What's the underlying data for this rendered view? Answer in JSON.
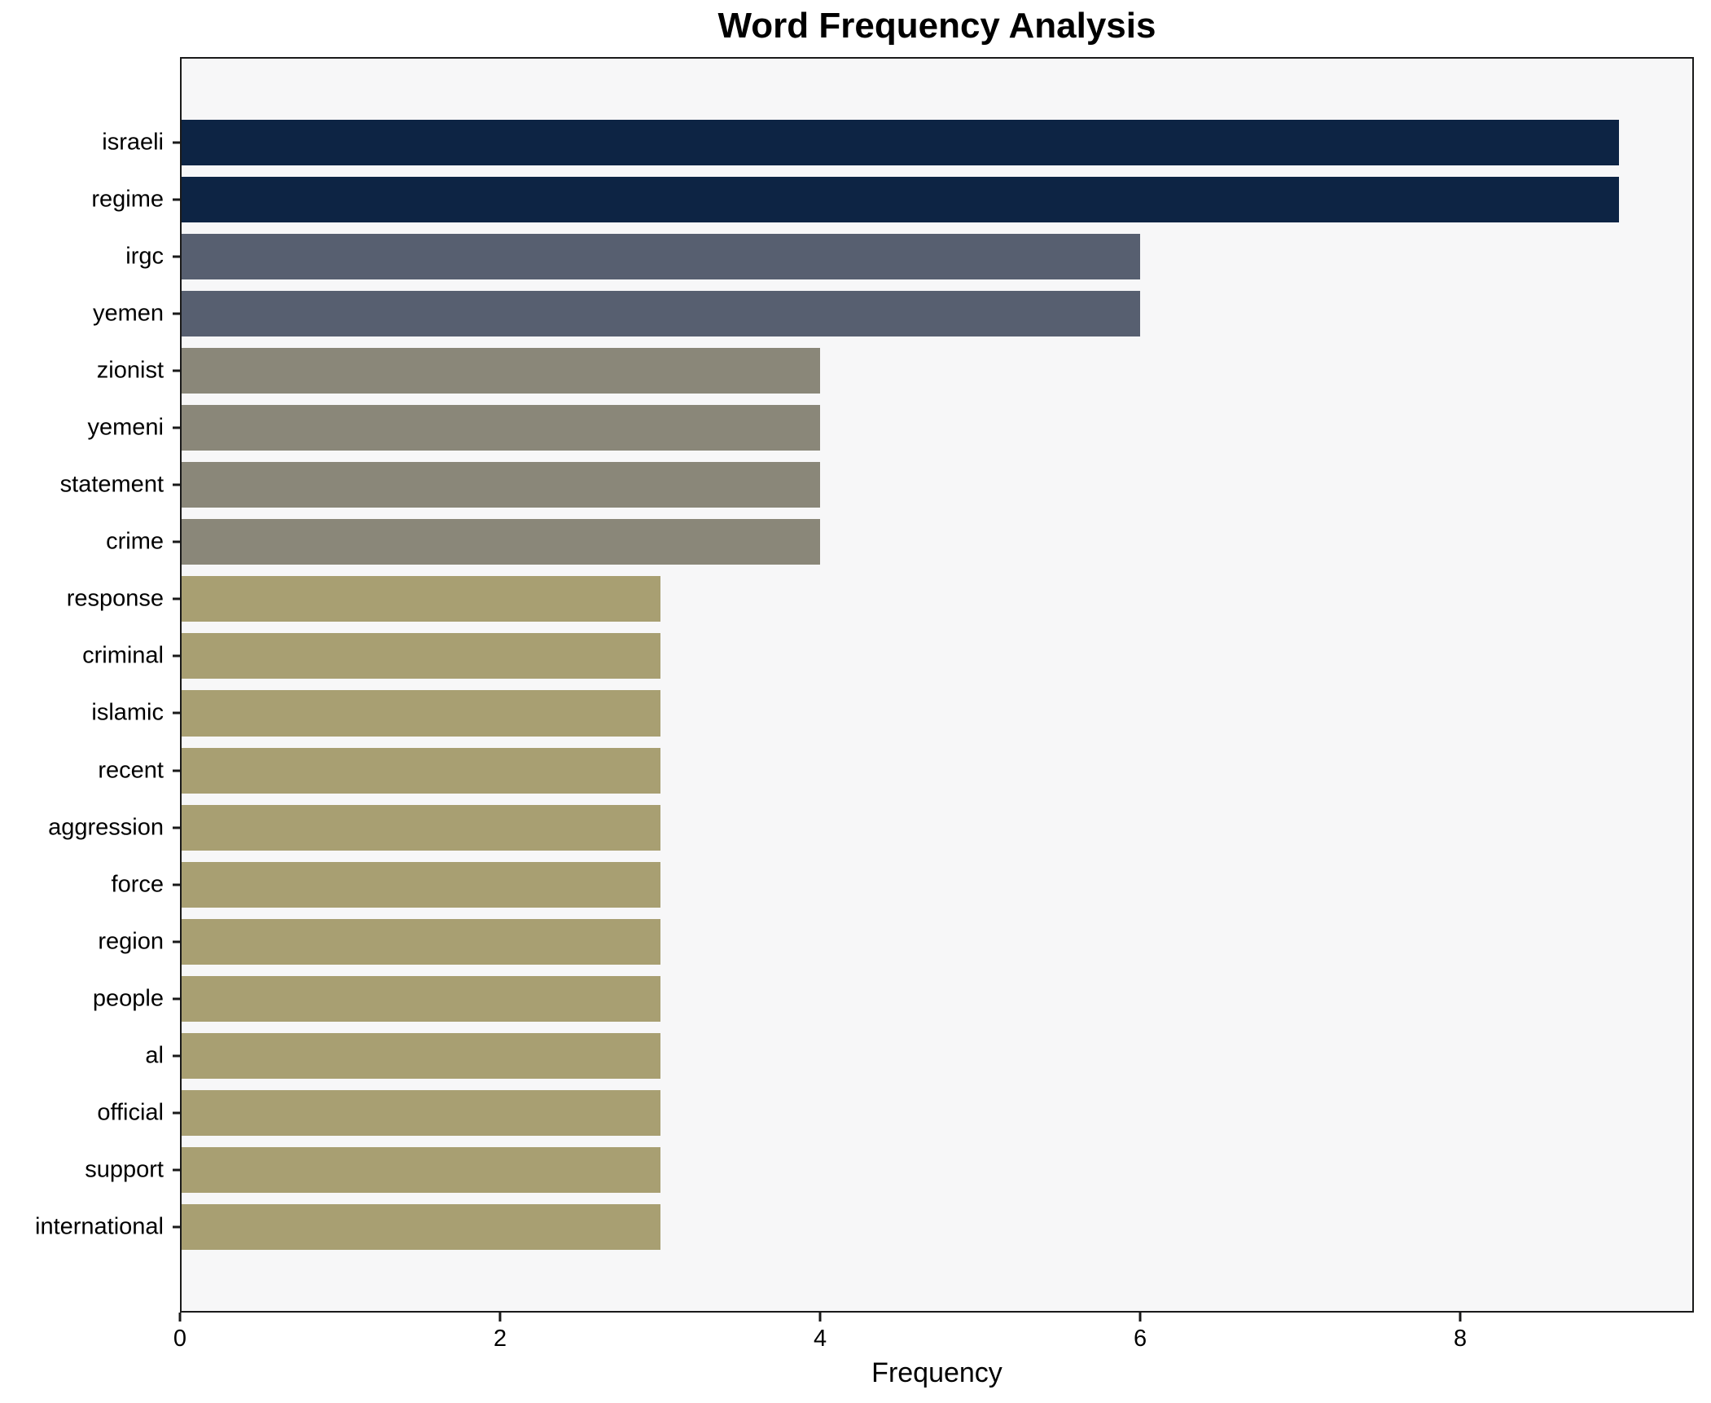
{
  "figure": {
    "title": "Word Frequency Analysis",
    "xlabel": "Frequency"
  },
  "chart_data": {
    "type": "bar",
    "orientation": "horizontal",
    "title": "Word Frequency Analysis",
    "xlabel": "Frequency",
    "ylabel": "",
    "xlim": [
      0,
      9.46
    ],
    "x_ticks": [
      0,
      2,
      4,
      6,
      8
    ],
    "grid": false,
    "legend": false,
    "plot_background": "#f7f7f8",
    "spine_color": "#1a1a1a",
    "categories": [
      "israeli",
      "regime",
      "irgc",
      "yemen",
      "zionist",
      "yemeni",
      "statement",
      "crime",
      "response",
      "criminal",
      "islamic",
      "recent",
      "aggression",
      "force",
      "region",
      "people",
      "al",
      "official",
      "support",
      "international"
    ],
    "values": [
      9,
      9,
      6,
      6,
      4,
      4,
      4,
      4,
      3,
      3,
      3,
      3,
      3,
      3,
      3,
      3,
      3,
      3,
      3,
      3
    ],
    "bar_colors": [
      "#0d2444",
      "#0d2444",
      "#575f70",
      "#575f70",
      "#8a8779",
      "#8a8779",
      "#8a8779",
      "#8a8779",
      "#a89f72",
      "#a89f72",
      "#a89f72",
      "#a89f72",
      "#a89f72",
      "#a89f72",
      "#a89f72",
      "#a89f72",
      "#a89f72",
      "#a89f72",
      "#a89f72",
      "#a89f72"
    ]
  }
}
